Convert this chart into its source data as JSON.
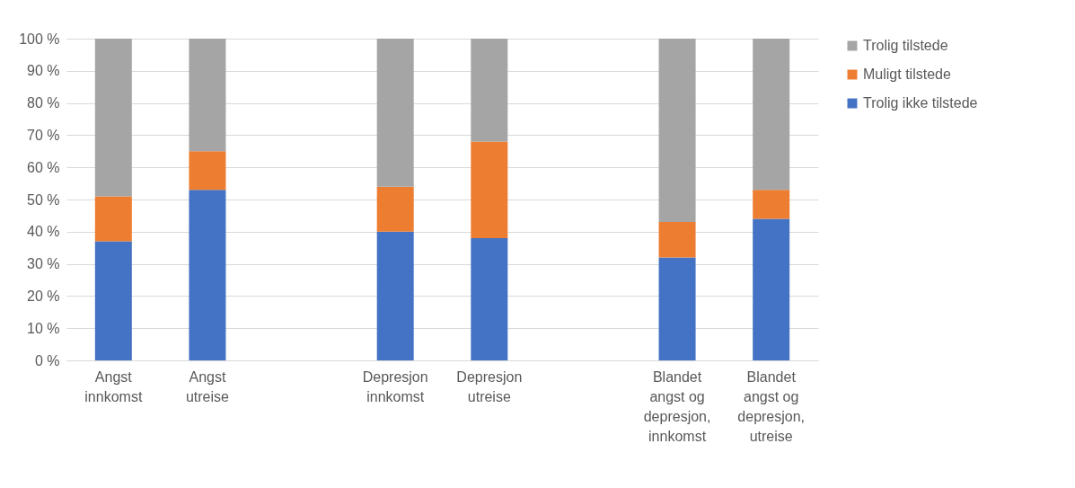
{
  "chart_data": {
    "type": "bar",
    "stacked": true,
    "categories": [
      "Angst innkomst",
      "Angst utreise",
      null,
      "Depresjon innkomst",
      "Depresjon utreise",
      null,
      "Blandet angst og depresjon, innkomst",
      "Blandet angst og depresjon, utreise"
    ],
    "series": [
      {
        "name": "Trolig ikke tilstede",
        "color": "#4472c4",
        "values": [
          37,
          53,
          null,
          40,
          38,
          null,
          32,
          44
        ]
      },
      {
        "name": "Muligt tilstede",
        "color": "#ed7d31",
        "values": [
          14,
          12,
          null,
          14,
          30,
          null,
          11,
          9
        ]
      },
      {
        "name": "Trolig tilstede",
        "color": "#a5a5a5",
        "values": [
          49,
          35,
          null,
          46,
          32,
          null,
          57,
          47
        ]
      }
    ],
    "ylim": [
      0,
      100
    ],
    "yticks": [
      {
        "value": 0,
        "label": "0 %"
      },
      {
        "value": 10,
        "label": "10 %"
      },
      {
        "value": 20,
        "label": "20 %"
      },
      {
        "value": 30,
        "label": "30 %"
      },
      {
        "value": 40,
        "label": "40 %"
      },
      {
        "value": 50,
        "label": "50 %"
      },
      {
        "value": 60,
        "label": "60 %"
      },
      {
        "value": 70,
        "label": "70 %"
      },
      {
        "value": 80,
        "label": "80 %"
      },
      {
        "value": 90,
        "label": "90 %"
      },
      {
        "value": 100,
        "label": "100 %"
      }
    ],
    "grid": "y",
    "legend": "right"
  }
}
